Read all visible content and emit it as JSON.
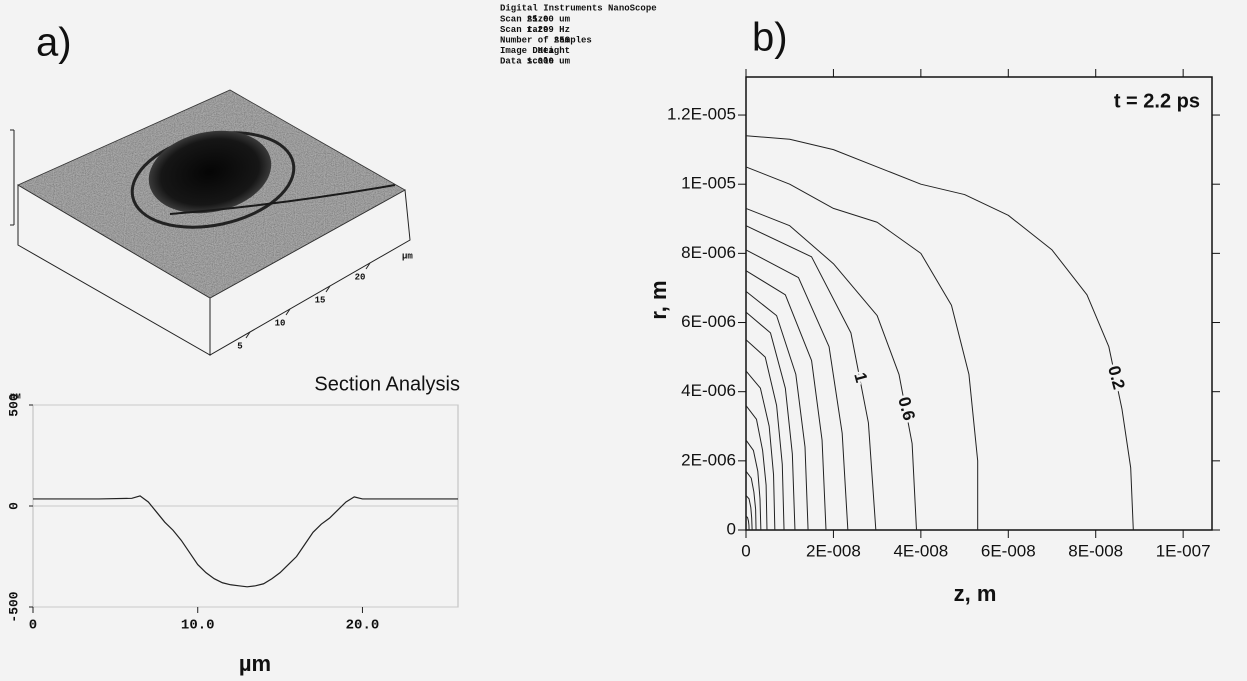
{
  "panels": [
    "a)",
    "b)"
  ],
  "afm": {
    "info_title": "Digital Instruments NanoScope",
    "info": [
      [
        "Scan size",
        "25.00 um"
      ],
      [
        "Scan rate",
        "1.299 Hz"
      ],
      [
        "Number of samples",
        "256"
      ],
      [
        "Image Data",
        "Height"
      ],
      [
        "Data scale",
        "1.000 um"
      ]
    ],
    "axis_unit": "µm",
    "axis_range": [
      0,
      25
    ],
    "axis_ticks": [
      5,
      10,
      15,
      20
    ]
  },
  "chart_data": [
    {
      "type": "line",
      "title": "Section Analysis",
      "y_unit": "nм",
      "x_label": "µm",
      "x": [
        0,
        2,
        4,
        6,
        6.5,
        7,
        7.5,
        8,
        8.5,
        9,
        9.5,
        10,
        10.5,
        11,
        11.5,
        12,
        12.5,
        13,
        13.5,
        14,
        14.5,
        15,
        15.5,
        16,
        16.5,
        17,
        17.5,
        18,
        18.5,
        19,
        19.5,
        20,
        22,
        24,
        25.8
      ],
      "values": [
        35,
        35,
        35,
        38,
        50,
        20,
        -30,
        -80,
        -120,
        -170,
        -230,
        -290,
        -330,
        -360,
        -380,
        -390,
        -395,
        -400,
        -395,
        -385,
        -360,
        -330,
        -290,
        -250,
        -190,
        -130,
        -90,
        -60,
        -20,
        20,
        45,
        35,
        35,
        35,
        35
      ],
      "color": "#222222",
      "xlim": [
        0,
        25.8
      ],
      "ylim": [
        -500,
        500
      ],
      "xticks": [
        0,
        {
          "value": 10,
          "label": "10.0"
        },
        {
          "value": 20,
          "label": "20.0"
        }
      ],
      "yticks": [
        -500,
        0,
        500
      ],
      "grid": true
    },
    {
      "type": "contour",
      "annotation": "t = 2.2 ps",
      "x_label": "z, m",
      "y_label": "r, m",
      "color": "#222222",
      "xlim": [
        0,
        1.066e-07
      ],
      "ylim": [
        0,
        1.31e-05
      ],
      "xticks": [
        0,
        {
          "value": 2e-08,
          "label": "2E-008"
        },
        {
          "value": 4e-08,
          "label": "4E-008"
        },
        {
          "value": 6e-08,
          "label": "6E-008"
        },
        {
          "value": 8e-08,
          "label": "8E-008"
        },
        {
          "value": 1e-07,
          "label": "1E-007"
        }
      ],
      "yticks": [
        0,
        {
          "value": 2e-06,
          "label": "2E-006"
        },
        {
          "value": 4e-06,
          "label": "4E-006"
        },
        {
          "value": 6e-06,
          "label": "6E-006"
        },
        {
          "value": 8e-06,
          "label": "8E-006"
        },
        {
          "value": 1e-05,
          "label": "1E-005"
        },
        {
          "value": 1.2e-05,
          "label": "1.2E-005"
        }
      ],
      "series": [
        {
          "label": "0.2",
          "x": [
            0,
            1e-08,
            2e-08,
            3e-08,
            4e-08,
            5e-08,
            6e-08,
            7e-08,
            7.8e-08,
            8.3e-08,
            8.6e-08,
            8.8e-08,
            8.86e-08
          ],
          "y": [
            1.14e-05,
            1.13e-05,
            1.1e-05,
            1.05e-05,
            1e-05,
            9.7e-06,
            9.1e-06,
            8.1e-06,
            6.8e-06,
            5.3e-06,
            3.5e-06,
            1.8e-06,
            0
          ]
        },
        {
          "x": [
            0,
            1e-08,
            2e-08,
            3e-08,
            4e-08,
            4.7e-08,
            5.1e-08,
            5.3e-08,
            5.3e-08
          ],
          "y": [
            1.05e-05,
            1e-05,
            9.3e-06,
            8.9e-06,
            8e-06,
            6.5e-06,
            4.5e-06,
            2e-06,
            0
          ]
        },
        {
          "label": "0.6",
          "x": [
            0,
            1e-08,
            2e-08,
            3e-08,
            3.5e-08,
            3.8e-08,
            3.9e-08
          ],
          "y": [
            9.3e-06,
            8.8e-06,
            7.7e-06,
            6.2e-06,
            4.5e-06,
            2.5e-06,
            0
          ]
        },
        {
          "label": "1",
          "x": [
            0,
            1.5e-08,
            2.4e-08,
            2.8e-08,
            2.97e-08
          ],
          "y": [
            8.8e-06,
            7.9e-06,
            5.7e-06,
            3.1e-06,
            0
          ]
        },
        {
          "x": [
            0,
            1.2e-08,
            1.9e-08,
            2.2e-08,
            2.33e-08
          ],
          "y": [
            8.1e-06,
            7.3e-06,
            5.3e-06,
            2.8e-06,
            0
          ]
        },
        {
          "x": [
            0,
            9e-09,
            1.5e-08,
            1.74e-08,
            1.83e-08
          ],
          "y": [
            7.5e-06,
            6.8e-06,
            4.9e-06,
            2.6e-06,
            0
          ]
        },
        {
          "x": [
            0,
            7e-09,
            1.14e-08,
            1.35e-08,
            1.42e-08
          ],
          "y": [
            6.9e-06,
            6.2e-06,
            4.5e-06,
            2.4e-06,
            0
          ]
        },
        {
          "x": [
            0,
            5.6e-09,
            9e-09,
            1.06e-08,
            1.12e-08
          ],
          "y": [
            6.3e-06,
            5.7e-06,
            4.1e-06,
            2.2e-06,
            0
          ]
        },
        {
          "x": [
            0,
            4.4e-09,
            7e-09,
            8.3e-09,
            8.7e-09
          ],
          "y": [
            5.5e-06,
            5e-06,
            3.6e-06,
            1.9e-06,
            0
          ]
        },
        {
          "x": [
            0,
            3.3e-09,
            5.3e-09,
            6.3e-09,
            6.6e-09
          ],
          "y": [
            4.6e-06,
            4.1e-06,
            3e-06,
            1.6e-06,
            0
          ]
        },
        {
          "x": [
            0,
            2.4e-09,
            3.8e-09,
            4.6e-09,
            4.8e-09
          ],
          "y": [
            3.6e-06,
            3.2e-06,
            2.3e-06,
            1.3e-06,
            0
          ]
        },
        {
          "x": [
            0,
            1.7e-09,
            2.7e-09,
            3.2e-09,
            3.4e-09
          ],
          "y": [
            2.6e-06,
            2.3e-06,
            1.7e-06,
            9e-07,
            0
          ]
        },
        {
          "x": [
            0,
            1.2e-09,
            1.8e-09,
            2.2e-09,
            2.3e-09
          ],
          "y": [
            1.7e-06,
            1.5e-06,
            1.1e-06,
            6e-07,
            0
          ]
        },
        {
          "x": [
            0,
            7e-10,
            1.1e-09,
            1.3e-09,
            1.4e-09
          ],
          "y": [
            1e-06,
            9e-07,
            6.5e-07,
            3.5e-07,
            0
          ]
        },
        {
          "x": [
            0,
            3.5e-10,
            5.6e-10,
            6.7e-10,
            7e-10
          ],
          "y": [
            4e-07,
            3.6e-07,
            2.6e-07,
            1.4e-07,
            0
          ]
        }
      ]
    }
  ]
}
